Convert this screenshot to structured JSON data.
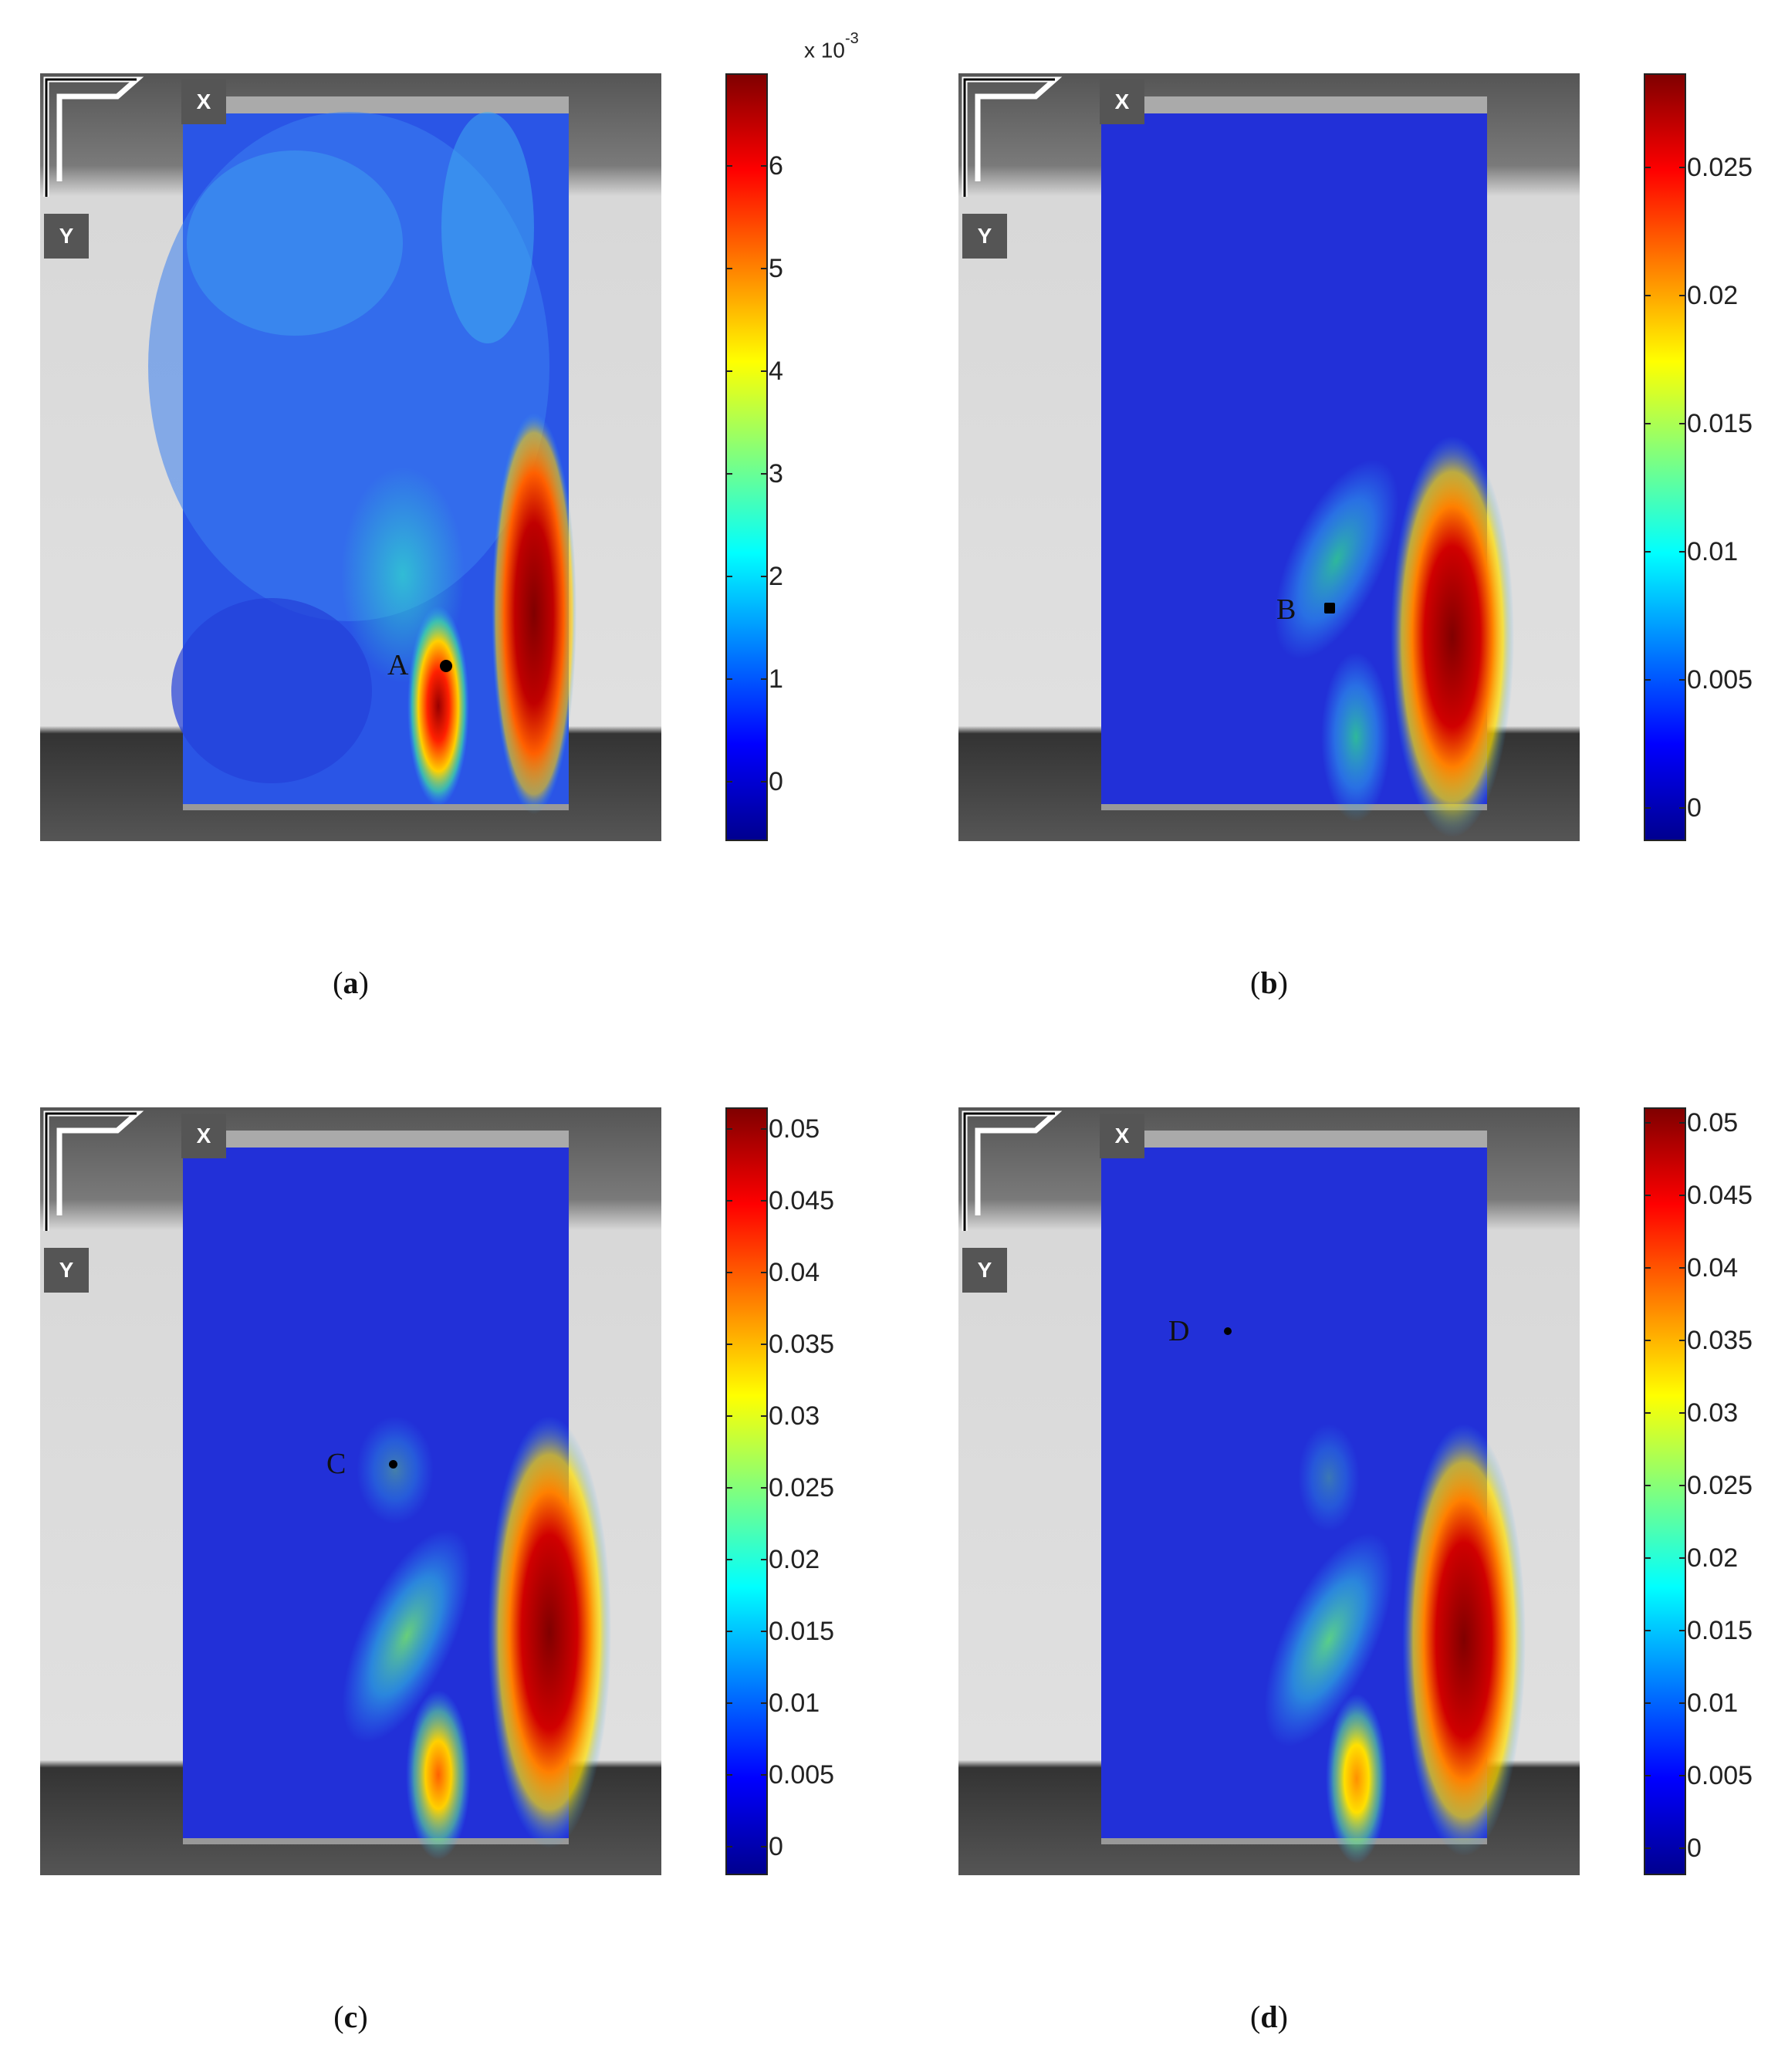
{
  "panels": [
    {
      "id": "a",
      "caption_letter": "a",
      "axis_x": "X",
      "axis_y": "Y",
      "point_label": "A",
      "colorbar": {
        "multiplier_base": "x 10",
        "multiplier_exp": "-3",
        "ticks": [
          "6",
          "5",
          "4",
          "3",
          "2",
          "1",
          "0"
        ]
      }
    },
    {
      "id": "b",
      "caption_letter": "b",
      "axis_x": "X",
      "axis_y": "Y",
      "point_label": "B",
      "colorbar": {
        "multiplier_base": "",
        "multiplier_exp": "",
        "ticks": [
          "0.025",
          "0.02",
          "0.015",
          "0.01",
          "0.005",
          "0"
        ]
      }
    },
    {
      "id": "c",
      "caption_letter": "c",
      "axis_x": "X",
      "axis_y": "Y",
      "point_label": "C",
      "colorbar": {
        "multiplier_base": "",
        "multiplier_exp": "",
        "ticks": [
          "0.05",
          "0.045",
          "0.04",
          "0.035",
          "0.03",
          "0.025",
          "0.02",
          "0.015",
          "0.01",
          "0.005",
          "0"
        ]
      }
    },
    {
      "id": "d",
      "caption_letter": "d",
      "axis_x": "X",
      "axis_y": "Y",
      "point_label": "D",
      "colorbar": {
        "multiplier_base": "",
        "multiplier_exp": "",
        "ticks": [
          "0.05",
          "0.045",
          "0.04",
          "0.035",
          "0.03",
          "0.025",
          "0.02",
          "0.015",
          "0.01",
          "0.005",
          "0"
        ]
      }
    }
  ],
  "colors": {
    "field_blue": "#2233dd",
    "hot_red": "#cc0000",
    "background_gray": "#9a9a9a"
  }
}
